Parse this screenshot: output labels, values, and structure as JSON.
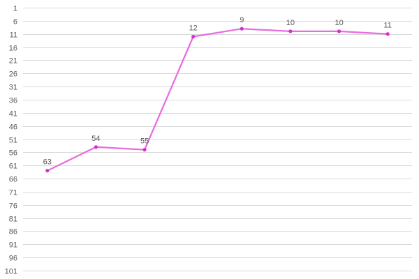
{
  "chart_data": {
    "type": "line",
    "title": "",
    "xlabel": "",
    "ylabel": "",
    "y_inverted": true,
    "ylim": [
      1,
      101
    ],
    "y_ticks": [
      1,
      6,
      11,
      16,
      21,
      26,
      31,
      36,
      41,
      46,
      51,
      56,
      61,
      66,
      71,
      76,
      81,
      86,
      91,
      96,
      101
    ],
    "y_tick_labels": [
      "1",
      "6",
      "11",
      "16",
      "21",
      "26",
      "31",
      "36",
      "41",
      "46",
      "51",
      "56",
      "61",
      "66",
      "71",
      "76",
      "81",
      "86",
      "91",
      "96",
      "101"
    ],
    "grid": true,
    "legend": "none",
    "x": [
      1,
      2,
      3,
      4,
      5,
      6,
      7,
      8
    ],
    "series": [
      {
        "values": [
          63,
          54,
          55,
          12,
          9,
          10,
          10,
          11
        ],
        "labels": [
          "63",
          "54",
          "55",
          "12",
          "9",
          "10",
          "10",
          "11"
        ],
        "color": "#e86ce0",
        "marker_color": "#d62fd0"
      }
    ]
  }
}
